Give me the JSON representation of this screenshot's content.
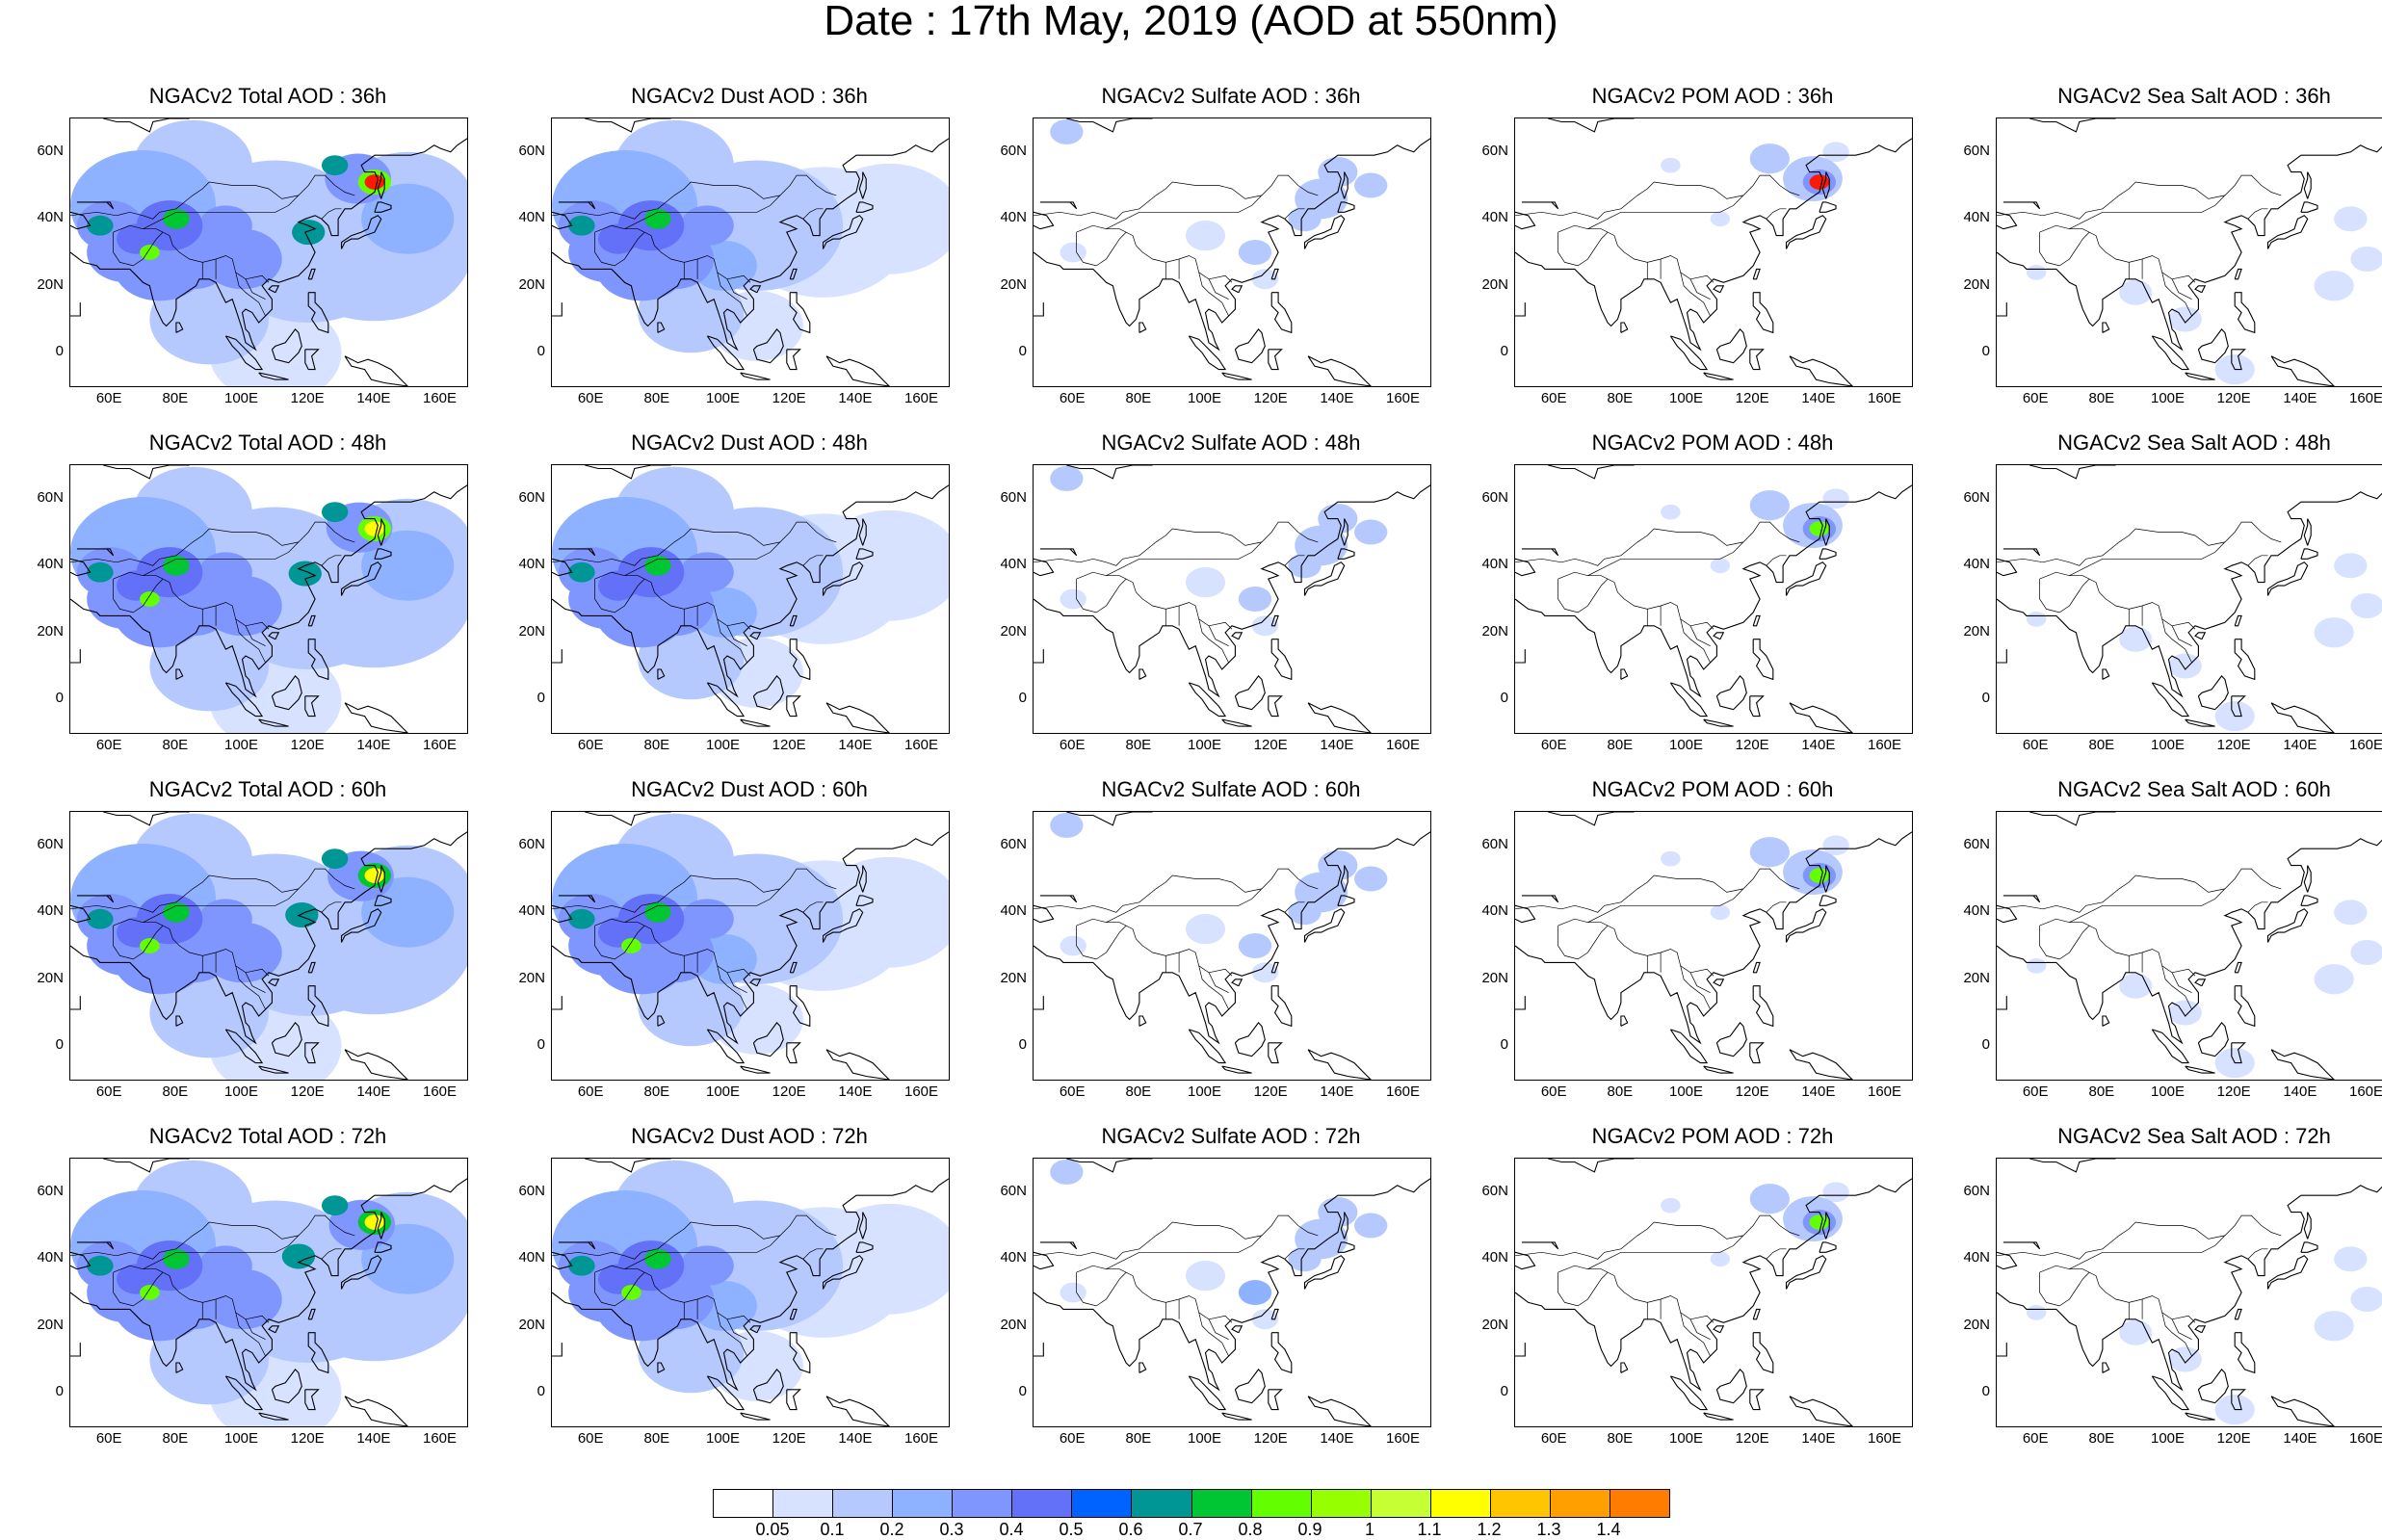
{
  "title": "Date : 17th May, 2019 (AOD at 550nm)",
  "ytick_labels": [
    "60N",
    "40N",
    "20N",
    "0"
  ],
  "xtick_labels": [
    "60E",
    "80E",
    "100E",
    "120E",
    "140E",
    "160E"
  ],
  "rows": [
    {
      "panels": [
        {
          "title": "NGACv2 Total AOD : 36h",
          "species": "total"
        },
        {
          "title": "NGACv2 Dust AOD : 36h",
          "species": "dust"
        },
        {
          "title": "NGACv2 Sulfate AOD : 36h",
          "species": "sulfate"
        },
        {
          "title": "NGACv2 POM AOD : 36h",
          "species": "pom"
        },
        {
          "title": "NGACv2 Sea Salt AOD : 36h",
          "species": "seasalt"
        }
      ]
    },
    {
      "panels": [
        {
          "title": "NGACv2 Total AOD : 48h",
          "species": "total"
        },
        {
          "title": "NGACv2 Dust AOD : 48h",
          "species": "dust"
        },
        {
          "title": "NGACv2 Sulfate AOD : 48h",
          "species": "sulfate"
        },
        {
          "title": "NGACv2 POM AOD : 48h",
          "species": "pom"
        },
        {
          "title": "NGACv2 Sea Salt AOD : 48h",
          "species": "seasalt"
        }
      ]
    },
    {
      "panels": [
        {
          "title": "NGACv2 Total AOD : 60h",
          "species": "total"
        },
        {
          "title": "NGACv2 Dust AOD : 60h",
          "species": "dust"
        },
        {
          "title": "NGACv2 Sulfate AOD : 60h",
          "species": "sulfate"
        },
        {
          "title": "NGACv2 POM AOD : 60h",
          "species": "pom"
        },
        {
          "title": "NGACv2 Sea Salt AOD : 60h",
          "species": "seasalt"
        }
      ]
    },
    {
      "panels": [
        {
          "title": "NGACv2 Total AOD : 72h",
          "species": "total"
        },
        {
          "title": "NGACv2 Dust AOD : 72h",
          "species": "dust"
        },
        {
          "title": "NGACv2 Sulfate AOD : 72h",
          "species": "sulfate"
        },
        {
          "title": "NGACv2 POM AOD : 72h",
          "species": "pom"
        },
        {
          "title": "NGACv2 Sea Salt  AOD : 72h",
          "species": "seasalt"
        }
      ]
    }
  ],
  "colorbar": {
    "labels": [
      "0.05",
      "0.1",
      "0.2",
      "0.3",
      "0.4",
      "0.5",
      "0.6",
      "0.7",
      "0.8",
      "0.9",
      "1",
      "1.1",
      "1.2",
      "1.3",
      "1.4"
    ],
    "colors": [
      "#ffffff",
      "#d6e2ff",
      "#b5c9ff",
      "#8eb2ff",
      "#7f96ff",
      "#6370f8",
      "#0063ff",
      "#009696",
      "#00c633",
      "#63ff00",
      "#96ff00",
      "#c6ff33",
      "#ffff00",
      "#ffc600",
      "#ffa000",
      "#ff7c00",
      "#ff1900"
    ]
  },
  "map": {
    "lon_range": [
      48,
      168
    ],
    "lat_range": [
      -10,
      70
    ],
    "land_outline_color": "#000000"
  }
}
